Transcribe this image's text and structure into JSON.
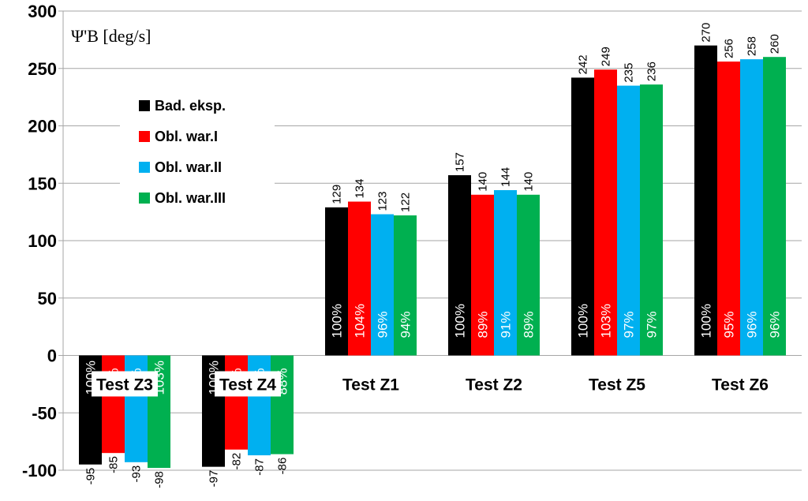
{
  "chart_data": {
    "type": "bar",
    "title": "Ψ'B [deg/s]",
    "categories": [
      "Test Z3",
      "Test Z4",
      "Test Z1",
      "Test Z2",
      "Test Z5",
      "Test Z6"
    ],
    "series": [
      {
        "name": "Bad. eksp.",
        "color": "#000000",
        "values": [
          -95,
          -97,
          129,
          157,
          242,
          270
        ],
        "percent_labels": [
          "100%",
          "100%",
          "100%",
          "100%",
          "100%",
          "100%"
        ]
      },
      {
        "name": "Obl. war.I",
        "color": "#ff0000",
        "values": [
          -85,
          -82,
          134,
          140,
          249,
          256
        ],
        "percent_labels": [
          "89%",
          "85%",
          "104%",
          "89%",
          "103%",
          "95%"
        ]
      },
      {
        "name": "Obl. war.II",
        "color": "#00b0f0",
        "values": [
          -93,
          -87,
          123,
          144,
          235,
          258
        ],
        "percent_labels": [
          "98%",
          "89%",
          "96%",
          "91%",
          "97%",
          "96%"
        ]
      },
      {
        "name": "Obl. war.III",
        "color": "#00b050",
        "values": [
          -98,
          -86,
          122,
          140,
          236,
          260
        ],
        "percent_labels": [
          "103%",
          "88%",
          "94%",
          "89%",
          "97%",
          "96%"
        ]
      }
    ],
    "ylim": [
      -100,
      300
    ],
    "yticks": [
      "300",
      "250",
      "200",
      "150",
      "100",
      "50",
      "0",
      "-50",
      "-100"
    ],
    "grid": true,
    "legend_position": "top-left"
  }
}
